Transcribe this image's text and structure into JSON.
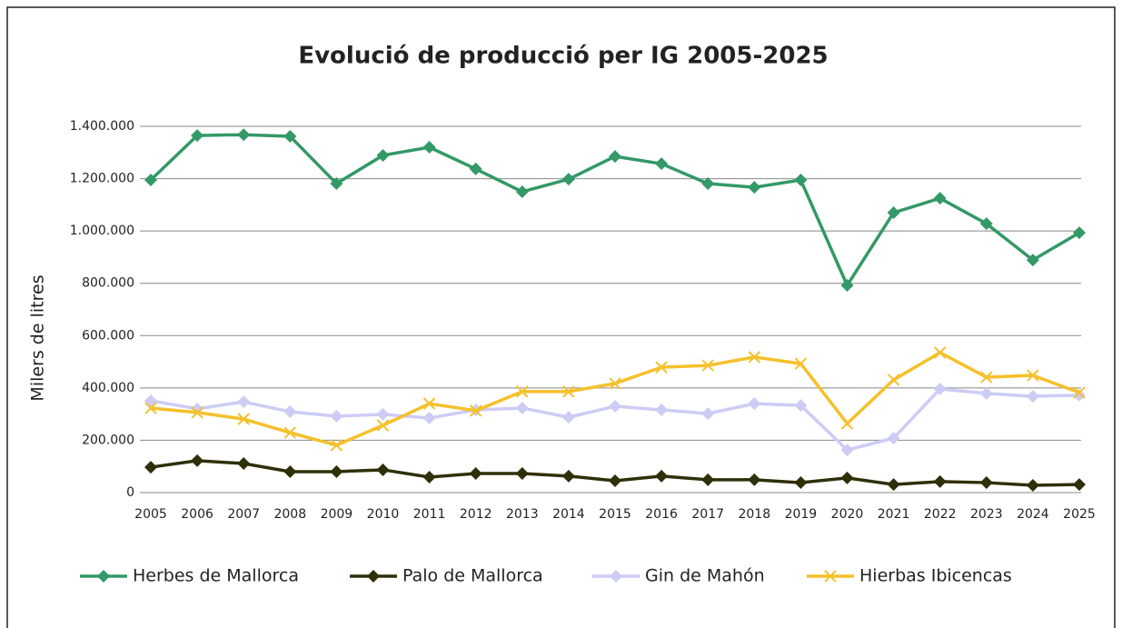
{
  "chart_data": {
    "type": "line",
    "title": "Evolució de producció per IG 2005-2025",
    "y_label": "Milers de litres",
    "categories": [
      "2005",
      "2006",
      "2007",
      "2008",
      "2009",
      "2010",
      "2011",
      "2012",
      "2013",
      "2014",
      "2015",
      "2016",
      "2017",
      "2018",
      "2019",
      "2020",
      "2021",
      "2022",
      "2023",
      "2024",
      "2025"
    ],
    "series": [
      {
        "name": "Herbes de Mallorca",
        "color": "#339966",
        "marker": "diamond",
        "values": [
          1195000,
          1365000,
          1368000,
          1362000,
          1181000,
          1289000,
          1320000,
          1237000,
          1150000,
          1198000,
          1285000,
          1257000,
          1181000,
          1167000,
          1195000,
          792000,
          1070000,
          1125000,
          1028000,
          889000,
          993000
        ]
      },
      {
        "name": "Palo de Mallorca",
        "color": "#2f2f0a",
        "marker": "diamond",
        "values": [
          97000,
          122000,
          111000,
          80000,
          80000,
          87000,
          59000,
          73000,
          73000,
          63000,
          45000,
          63000,
          49000,
          49000,
          38000,
          56000,
          31000,
          42000,
          38000,
          28000,
          31000
        ]
      },
      {
        "name": "Gin de Mahón",
        "color": "#ccccf5",
        "marker": "diamond",
        "values": [
          351000,
          320000,
          347000,
          309000,
          292000,
          299000,
          285000,
          316000,
          323000,
          288000,
          330000,
          316000,
          302000,
          340000,
          333000,
          163000,
          208000,
          396000,
          379000,
          368000,
          372000
        ]
      },
      {
        "name": "Hierbas Ibicencas",
        "color": "#f5c02a",
        "marker": "x",
        "values": [
          323000,
          306000,
          281000,
          229000,
          181000,
          257000,
          340000,
          313000,
          386000,
          386000,
          417000,
          479000,
          486000,
          518000,
          493000,
          264000,
          431000,
          535000,
          441000,
          448000,
          382000
        ]
      }
    ],
    "ylim": [
      0,
      1400000
    ],
    "yticks": [
      0,
      {
        "value": 200000,
        "label": "200.000"
      },
      {
        "value": 400000,
        "label": "400.000"
      },
      {
        "value": 600000,
        "label": "600.000"
      },
      {
        "value": 800000,
        "label": "800.000"
      },
      {
        "value": 1000000,
        "label": "1.000.000"
      },
      {
        "value": 1200000,
        "label": "1.200.000"
      },
      {
        "value": 1400000,
        "label": "1.400.000"
      }
    ],
    "grid": true,
    "legend": "bottom"
  }
}
